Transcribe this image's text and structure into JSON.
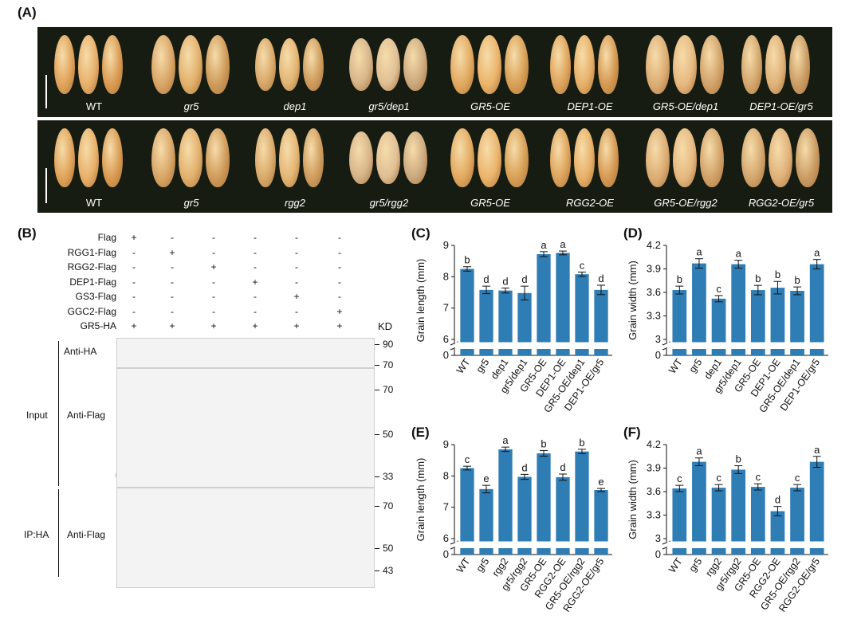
{
  "panel_labels": {
    "a": "(A)",
    "b": "(B)",
    "c": "(C)",
    "d": "(D)",
    "e": "(E)",
    "f": "(F)"
  },
  "panel_a": {
    "strip1": [
      "WT",
      "gr5",
      "dep1",
      "gr5/dep1",
      "GR5-OE",
      "DEP1-OE",
      "GR5-OE/dep1",
      "DEP1-OE/gr5"
    ],
    "strip2": [
      "WT",
      "gr5",
      "rgg2",
      "gr5/rgg2",
      "GR5-OE",
      "RGG2-OE",
      "GR5-OE/rgg2",
      "RGG2-OE/gr5"
    ]
  },
  "panel_b": {
    "rows": [
      {
        "label": "Flag",
        "marks": [
          "+",
          "-",
          "-",
          "-",
          "-",
          "-"
        ]
      },
      {
        "label": "RGG1-Flag",
        "marks": [
          "-",
          "+",
          "-",
          "-",
          "-",
          "-"
        ]
      },
      {
        "label": "RGG2-Flag",
        "marks": [
          "-",
          "-",
          "+",
          "-",
          "-",
          "-"
        ]
      },
      {
        "label": "DEP1-Flag",
        "marks": [
          "-",
          "-",
          "-",
          "+",
          "-",
          "-"
        ]
      },
      {
        "label": "GS3-Flag",
        "marks": [
          "-",
          "-",
          "-",
          "-",
          "+",
          "-"
        ]
      },
      {
        "label": "GGC2-Flag",
        "marks": [
          "-",
          "-",
          "-",
          "-",
          "-",
          "+"
        ]
      },
      {
        "label": "GR5-HA",
        "marks": [
          "+",
          "+",
          "+",
          "+",
          "+",
          "+"
        ]
      }
    ],
    "kd": "KD",
    "input_label": "Input",
    "ip_label": "IP:HA",
    "blots": [
      {
        "antibody": "Anti-HA",
        "markers": [
          "90",
          "70"
        ]
      },
      {
        "antibody": "Anti-Flag",
        "markers": [
          "70",
          "50",
          "33"
        ]
      },
      {
        "antibody": "Anti-Flag",
        "markers": [
          "70",
          "50",
          "43"
        ]
      }
    ]
  },
  "chart_data": [
    {
      "id": "C",
      "type": "bar",
      "ylabel": "Grain length (mm)",
      "yticks": [
        "0",
        "6",
        "7",
        "8",
        "9"
      ],
      "ylim": [
        6,
        9
      ],
      "axis_break": true,
      "categories": [
        "WT",
        "gr5",
        "dep1",
        "gr5/dep1",
        "GR5-OE",
        "DEP1-OE",
        "GR5-OE/dep1",
        "DEP1-OE/gr5"
      ],
      "values": [
        8.25,
        7.58,
        7.56,
        7.48,
        8.72,
        8.76,
        8.08,
        7.58
      ],
      "errors": [
        0.07,
        0.12,
        0.08,
        0.22,
        0.08,
        0.06,
        0.07,
        0.15
      ],
      "letters": [
        "b",
        "d",
        "d",
        "d",
        "a",
        "a",
        "c",
        "d"
      ],
      "color": "#2f7db5"
    },
    {
      "id": "D",
      "type": "bar",
      "ylabel": "Grain width (mm)",
      "yticks": [
        "0",
        "3",
        "3.3",
        "3.6",
        "3.9",
        "4.2"
      ],
      "ylim": [
        3,
        4.2
      ],
      "axis_break": true,
      "categories": [
        "WT",
        "gr5",
        "dep1",
        "gr5/dep1",
        "GR5-OE",
        "DEP1-OE",
        "GR5-OE/dep1",
        "DEP1-OE/gr5"
      ],
      "values": [
        3.63,
        3.97,
        3.52,
        3.96,
        3.63,
        3.66,
        3.62,
        3.96
      ],
      "errors": [
        0.05,
        0.06,
        0.04,
        0.05,
        0.06,
        0.08,
        0.05,
        0.06
      ],
      "letters": [
        "b",
        "a",
        "c",
        "a",
        "b",
        "b",
        "b",
        "a"
      ],
      "color": "#2f7db5"
    },
    {
      "id": "E",
      "type": "bar",
      "ylabel": "Grain length (mm)",
      "yticks": [
        "0",
        "6",
        "7",
        "8",
        "9"
      ],
      "ylim": [
        6,
        9
      ],
      "axis_break": true,
      "categories": [
        "WT",
        "gr5",
        "rgg2",
        "gr5/rgg2",
        "GR5-OE",
        "RGG2-OE",
        "GR5-OE/rgg2",
        "RGG2-OE/gr5"
      ],
      "values": [
        8.25,
        7.58,
        8.85,
        7.97,
        8.72,
        7.96,
        8.78,
        7.55
      ],
      "errors": [
        0.06,
        0.12,
        0.07,
        0.08,
        0.09,
        0.1,
        0.07,
        0.05
      ],
      "letters": [
        "c",
        "e",
        "a",
        "d",
        "b",
        "d",
        "b",
        "e"
      ],
      "color": "#2f7db5"
    },
    {
      "id": "F",
      "type": "bar",
      "ylabel": "Grain width (mm)",
      "yticks": [
        "0",
        "3",
        "3.3",
        "3.6",
        "3.9",
        "4.2"
      ],
      "ylim": [
        3,
        4.2
      ],
      "axis_break": true,
      "categories": [
        "WT",
        "gr5",
        "rgg2",
        "gr5/rgg2",
        "GR5-OE",
        "RGG2-OE",
        "GR5-OE/rgg2",
        "RGG2-OE/gr5"
      ],
      "values": [
        3.64,
        3.98,
        3.65,
        3.88,
        3.66,
        3.35,
        3.65,
        3.98
      ],
      "errors": [
        0.04,
        0.05,
        0.04,
        0.05,
        0.04,
        0.06,
        0.04,
        0.07
      ],
      "letters": [
        "c",
        "a",
        "c",
        "b",
        "c",
        "d",
        "c",
        "a"
      ],
      "color": "#2f7db5"
    }
  ]
}
